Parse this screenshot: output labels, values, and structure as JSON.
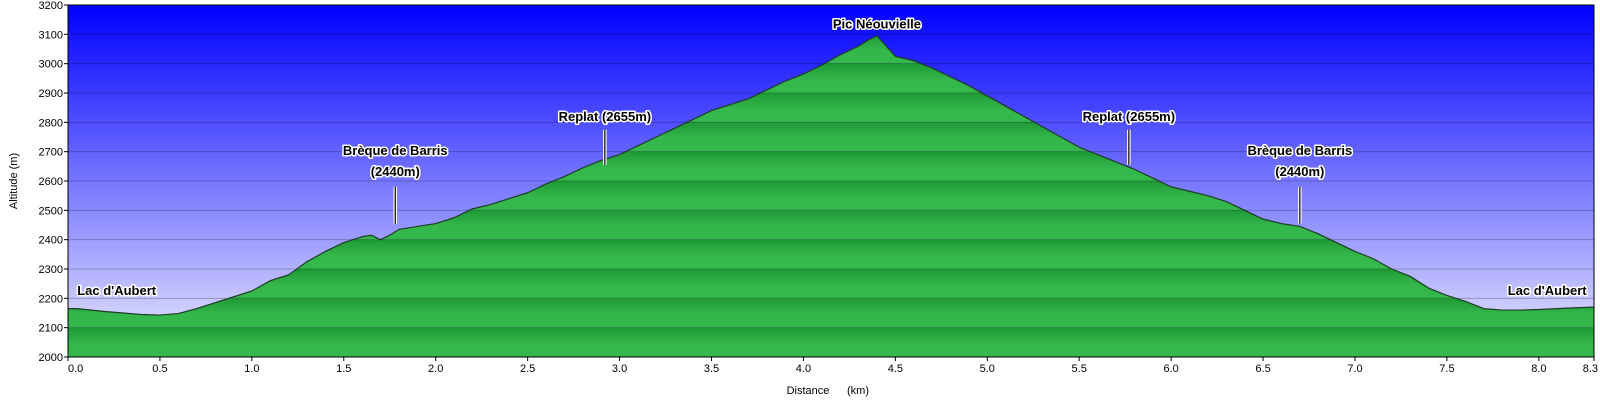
{
  "chart_data": {
    "type": "area",
    "xlabel": "Distance",
    "xunit": "(km)",
    "ylabel": "Altitude (m)",
    "xlim": [
      0,
      8.3
    ],
    "ylim": [
      2000,
      3200
    ],
    "grid": true,
    "colors": {
      "sky_top": "#0000ff",
      "sky_bottom": "#ececff",
      "terrain_dark": "#1f9a36",
      "terrain_light": "#34b74b",
      "outline": "#1d3d24"
    },
    "x_ticks": [
      {
        "value": 0,
        "label": "0.0"
      },
      {
        "value": 0.5,
        "label": "0.5"
      },
      {
        "value": 1,
        "label": "1.0"
      },
      {
        "value": 1.5,
        "label": "1.5"
      },
      {
        "value": 2,
        "label": "2.0"
      },
      {
        "value": 2.5,
        "label": "2.5"
      },
      {
        "value": 3,
        "label": "3.0"
      },
      {
        "value": 3.5,
        "label": "3.5"
      },
      {
        "value": 4,
        "label": "4.0"
      },
      {
        "value": 4.5,
        "label": "4.5"
      },
      {
        "value": 5,
        "label": "5.0"
      },
      {
        "value": 5.5,
        "label": "5.5"
      },
      {
        "value": 6,
        "label": "6.0"
      },
      {
        "value": 6.5,
        "label": "6.5"
      },
      {
        "value": 7,
        "label": "7.0"
      },
      {
        "value": 7.5,
        "label": "7.5"
      },
      {
        "value": 8,
        "label": "8.0"
      },
      {
        "value": 8.3,
        "label": "8.3"
      }
    ],
    "y_ticks": [
      {
        "value": 2000,
        "label": "2000"
      },
      {
        "value": 2100,
        "label": "2100"
      },
      {
        "value": 2200,
        "label": "2200"
      },
      {
        "value": 2300,
        "label": "2300"
      },
      {
        "value": 2400,
        "label": "2400"
      },
      {
        "value": 2500,
        "label": "2500"
      },
      {
        "value": 2600,
        "label": "2600"
      },
      {
        "value": 2700,
        "label": "2700"
      },
      {
        "value": 2800,
        "label": "2800"
      },
      {
        "value": 2900,
        "label": "2900"
      },
      {
        "value": 3000,
        "label": "3000"
      },
      {
        "value": 3100,
        "label": "3100"
      },
      {
        "value": 3200,
        "label": "3200"
      }
    ],
    "x": [
      0,
      0.05,
      0.2,
      0.3,
      0.4,
      0.5,
      0.6,
      0.7,
      0.8,
      0.9,
      1.0,
      1.1,
      1.2,
      1.3,
      1.4,
      1.5,
      1.6,
      1.65,
      1.7,
      1.75,
      1.8,
      1.9,
      2.0,
      2.1,
      2.2,
      2.3,
      2.4,
      2.5,
      2.6,
      2.7,
      2.8,
      2.9,
      3.0,
      3.1,
      3.2,
      3.3,
      3.4,
      3.5,
      3.6,
      3.7,
      3.8,
      3.9,
      4.0,
      4.1,
      4.2,
      4.3,
      4.35,
      4.4,
      4.45,
      4.5,
      4.6,
      4.7,
      4.8,
      4.9,
      5.0,
      5.1,
      5.2,
      5.3,
      5.4,
      5.5,
      5.6,
      5.7,
      5.8,
      5.9,
      6.0,
      6.1,
      6.2,
      6.3,
      6.4,
      6.5,
      6.6,
      6.7,
      6.8,
      6.9,
      7.0,
      7.1,
      7.2,
      7.3,
      7.4,
      7.5,
      7.6,
      7.7,
      7.8,
      7.9,
      8.0,
      8.1,
      8.2,
      8.3
    ],
    "y": [
      2165,
      2165,
      2155,
      2150,
      2145,
      2143,
      2148,
      2165,
      2185,
      2205,
      2225,
      2260,
      2280,
      2325,
      2360,
      2390,
      2410,
      2415,
      2400,
      2415,
      2435,
      2445,
      2455,
      2475,
      2505,
      2520,
      2540,
      2560,
      2590,
      2615,
      2645,
      2670,
      2690,
      2720,
      2750,
      2780,
      2810,
      2840,
      2860,
      2880,
      2910,
      2940,
      2965,
      2995,
      3030,
      3060,
      3080,
      3095,
      3060,
      3025,
      3010,
      2985,
      2955,
      2925,
      2890,
      2855,
      2820,
      2785,
      2750,
      2715,
      2690,
      2665,
      2640,
      2610,
      2580,
      2565,
      2550,
      2530,
      2500,
      2470,
      2455,
      2445,
      2420,
      2390,
      2360,
      2335,
      2300,
      2275,
      2235,
      2210,
      2190,
      2165,
      2160,
      2160,
      2162,
      2165,
      2168,
      2170
    ],
    "annotations": [
      {
        "id": "lac-start",
        "lines": [
          "Lac d'Aubert"
        ],
        "x": 0.05,
        "label_y": 2212,
        "align": "start"
      },
      {
        "id": "breque-1",
        "lines": [
          "Brèque de Barris",
          "(2440m)"
        ],
        "x": 1.78,
        "label_y": 2688,
        "line_top": 2580,
        "line_bottom": 2455,
        "align": "middle"
      },
      {
        "id": "replat-1",
        "lines": [
          "Replat (2655m)"
        ],
        "x": 2.92,
        "label_y": 2805,
        "line_top": 2775,
        "line_bottom": 2655,
        "align": "middle"
      },
      {
        "id": "pic",
        "lines": [
          "Pic Néouvielle"
        ],
        "x": 4.4,
        "label_y": 3120,
        "align": "middle"
      },
      {
        "id": "replat-2",
        "lines": [
          "Replat (2655m)"
        ],
        "x": 5.77,
        "label_y": 2805,
        "line_top": 2775,
        "line_bottom": 2655,
        "align": "middle"
      },
      {
        "id": "breque-2",
        "lines": [
          "Brèque de Barris",
          "(2440m)"
        ],
        "x": 6.7,
        "label_y": 2688,
        "line_top": 2580,
        "line_bottom": 2455,
        "align": "middle"
      },
      {
        "id": "lac-end",
        "lines": [
          "Lac d'Aubert"
        ],
        "x": 8.26,
        "label_y": 2212,
        "align": "end"
      }
    ]
  }
}
